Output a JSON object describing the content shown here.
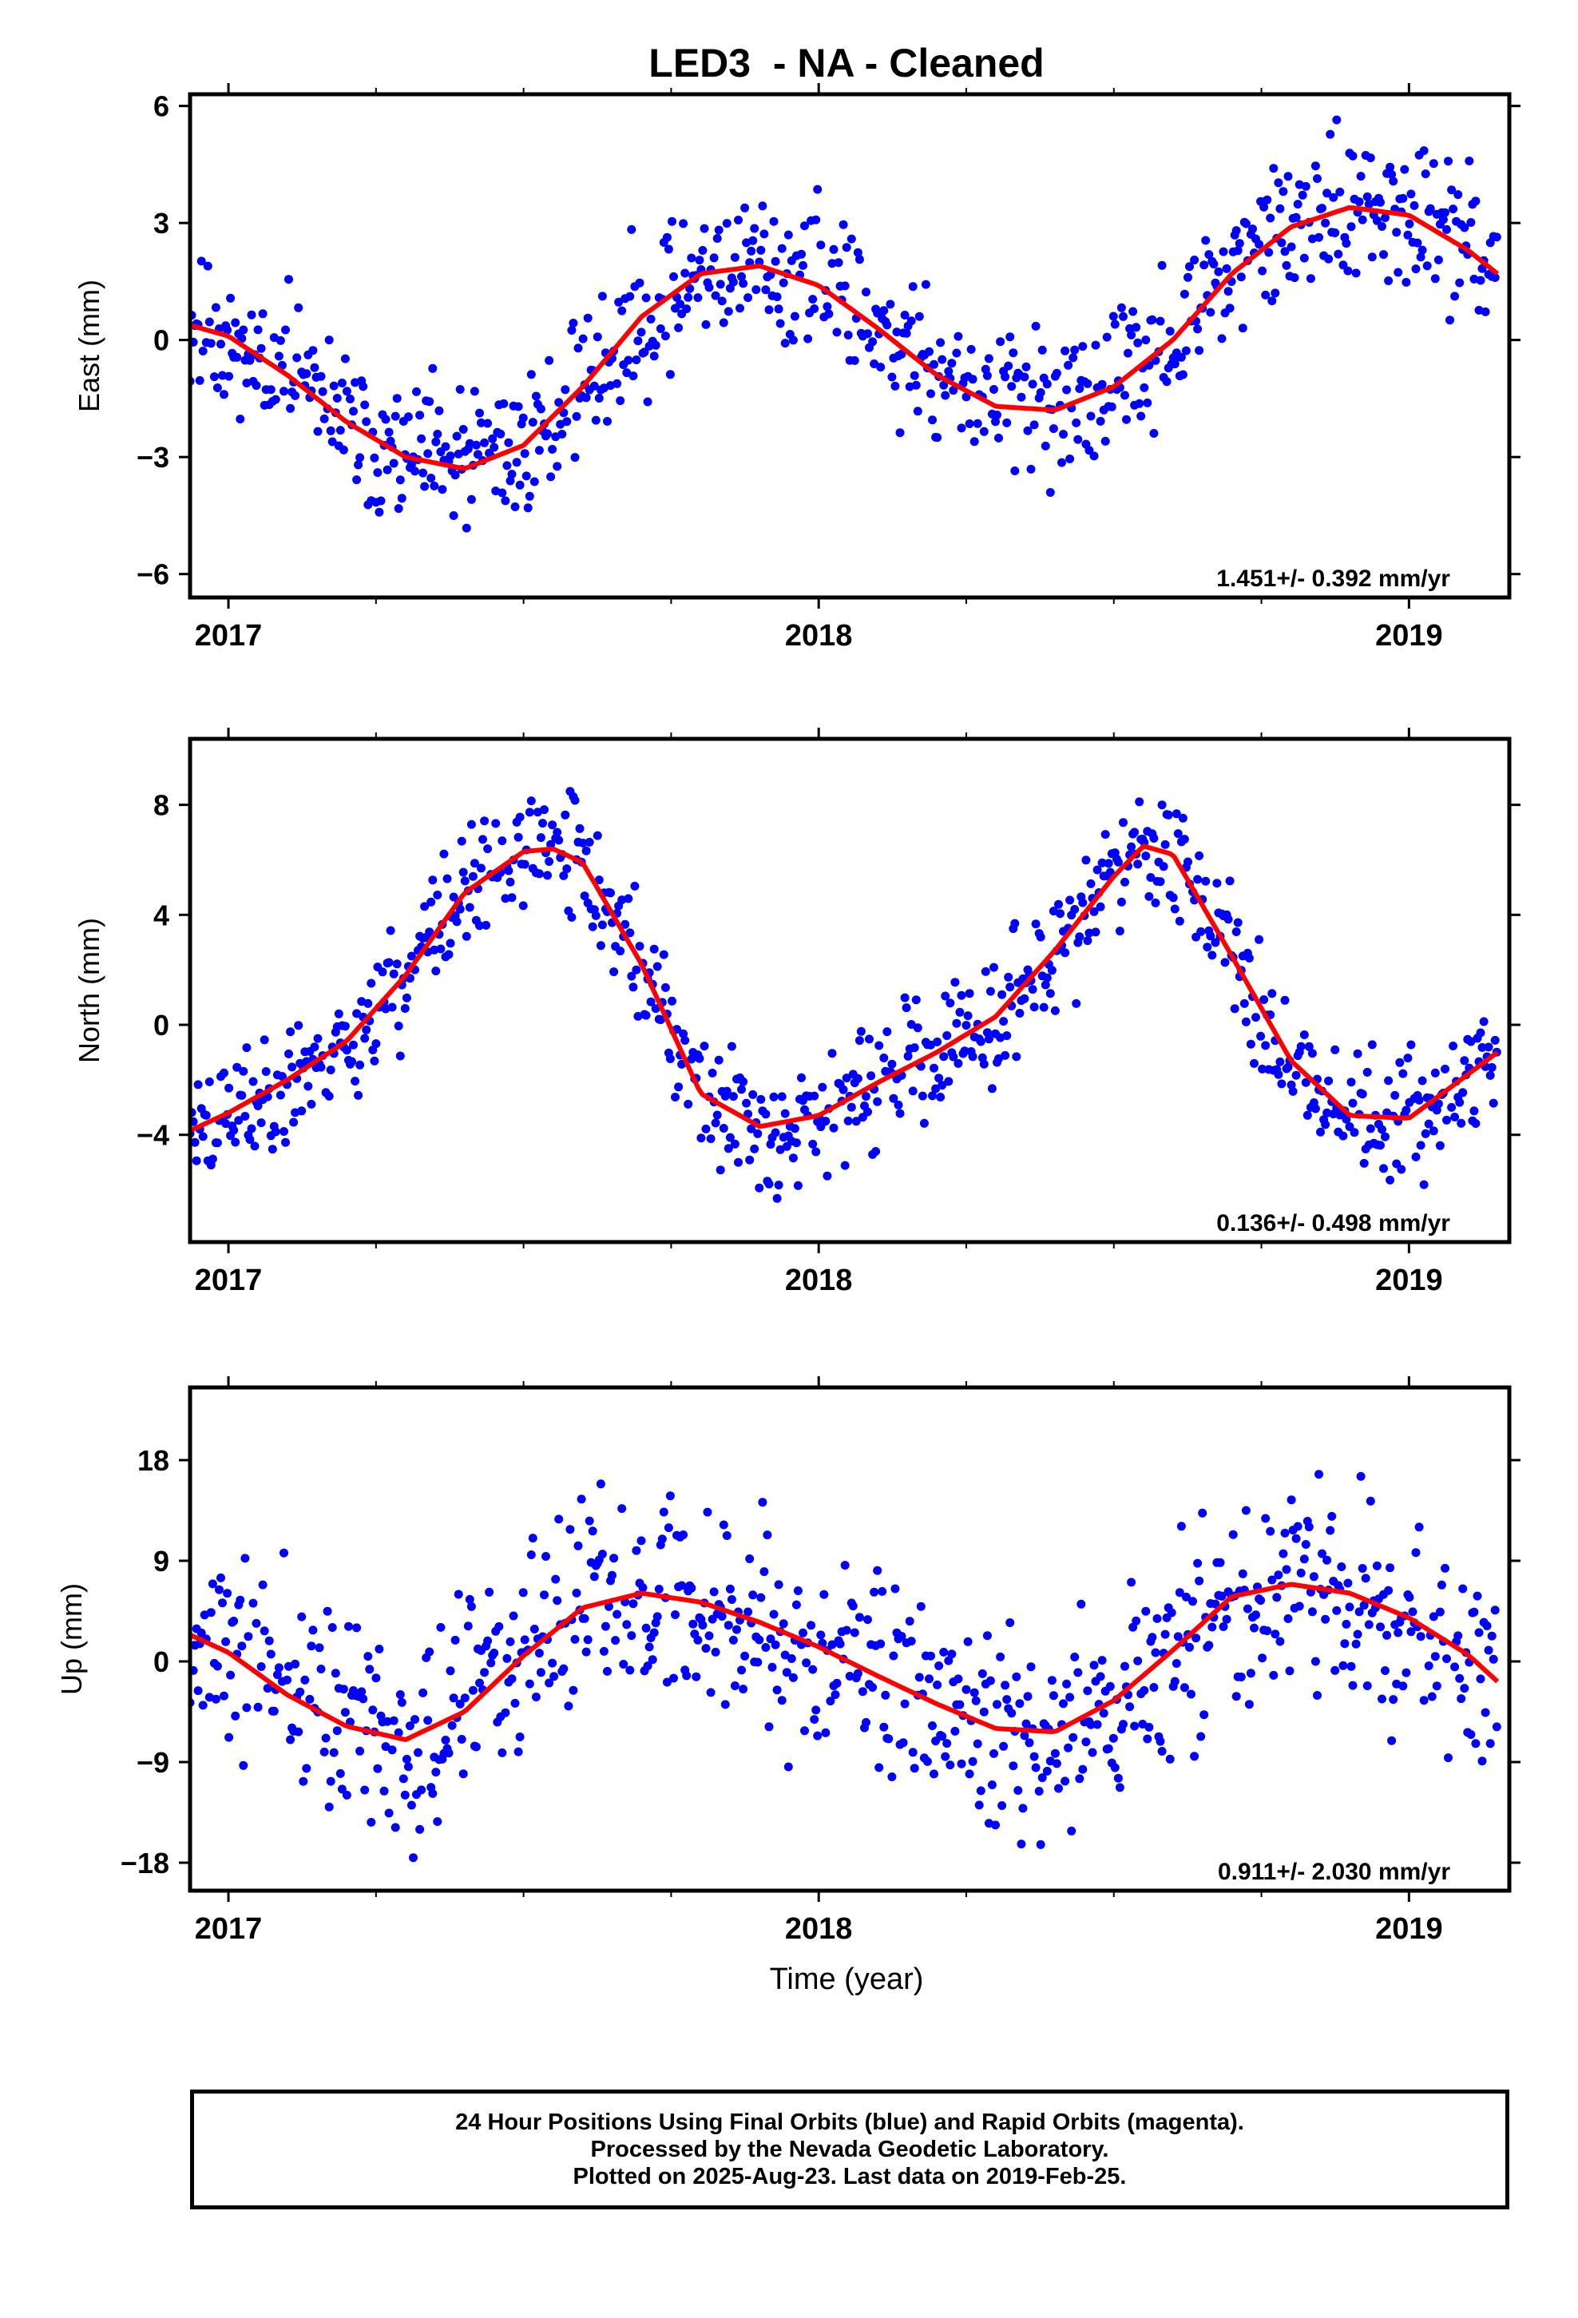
{
  "title": "LED3  - NA - Cleaned",
  "colors": {
    "data": "#0000ff",
    "fit": "#ff0000",
    "frame": "#000000"
  },
  "xlabel": "Time (year)",
  "footer": {
    "line1": "24 Hour Positions Using Final Orbits (blue) and Rapid Orbits (magenta).",
    "line2": "Processed by the Nevada Geodetic Laboratory.",
    "line3": "Plotted on 2025-Aug-23. Last data on 2019-Feb-25."
  },
  "chart_data": [
    {
      "type": "scatter",
      "ylabel": "East (mm)",
      "rate_label": "1.451+/- 0.392 mm/yr",
      "xlim": [
        2016.935,
        2019.17
      ],
      "ylim": [
        -6.6,
        6.3
      ],
      "xticks": [
        2017,
        2018,
        2019
      ],
      "yticks": [
        -6,
        -3,
        0,
        3,
        6
      ],
      "yticklabels": [
        "−6",
        "−3",
        "0",
        "3",
        "6"
      ],
      "fit": {
        "x": [
          2016.93,
          2017.0,
          2017.1,
          2017.2,
          2017.3,
          2017.4,
          2017.5,
          2017.6,
          2017.7,
          2017.8,
          2017.9,
          2018.0,
          2018.1,
          2018.2,
          2018.3,
          2018.4,
          2018.5,
          2018.6,
          2018.7,
          2018.8,
          2018.9,
          2019.0,
          2019.1,
          2019.15
        ],
        "y": [
          0.4,
          0.1,
          -0.9,
          -2.1,
          -3.0,
          -3.3,
          -2.7,
          -1.2,
          0.6,
          1.7,
          1.9,
          1.4,
          0.3,
          -0.9,
          -1.7,
          -1.8,
          -1.2,
          0.0,
          1.7,
          2.9,
          3.4,
          3.2,
          2.3,
          1.7
        ]
      },
      "series_seed": 11,
      "noise": 0.9
    },
    {
      "type": "scatter",
      "ylabel": "North (mm)",
      "rate_label": "0.136+/- 0.498 mm/yr",
      "xlim": [
        2016.935,
        2019.17
      ],
      "ylim": [
        -7.9,
        10.4
      ],
      "xticks": [
        2017,
        2018,
        2019
      ],
      "yticks": [
        -4,
        0,
        4,
        8
      ],
      "yticklabels": [
        "−4",
        "0",
        "4",
        "8"
      ],
      "fit": {
        "x": [
          2016.93,
          2017.0,
          2017.1,
          2017.2,
          2017.3,
          2017.4,
          2017.5,
          2017.55,
          2017.6,
          2017.7,
          2017.8,
          2017.9,
          2018.0,
          2018.1,
          2018.2,
          2018.3,
          2018.4,
          2018.5,
          2018.55,
          2018.6,
          2018.7,
          2018.8,
          2018.9,
          2019.0,
          2019.1,
          2019.15
        ],
        "y": [
          -3.9,
          -3.2,
          -2.0,
          -0.6,
          1.8,
          4.8,
          6.3,
          6.4,
          5.9,
          2.2,
          -2.5,
          -3.7,
          -3.3,
          -2.1,
          -1.0,
          0.3,
          2.7,
          5.4,
          6.5,
          6.2,
          2.5,
          -1.3,
          -3.3,
          -3.4,
          -1.8,
          -1.0
        ]
      },
      "series_seed": 23,
      "noise": 1.1
    },
    {
      "type": "scatter",
      "ylabel": "Up (mm)",
      "rate_label": "0.911+/- 2.030 mm/yr",
      "xlim": [
        2016.935,
        2019.17
      ],
      "ylim": [
        -20.5,
        24.5
      ],
      "xticks": [
        2017,
        2018,
        2019
      ],
      "yticks": [
        -18,
        -9,
        0,
        9,
        18
      ],
      "yticklabels": [
        "−18",
        "−9",
        "0",
        "9",
        "18"
      ],
      "fit": {
        "x": [
          2016.93,
          2017.0,
          2017.1,
          2017.2,
          2017.3,
          2017.4,
          2017.5,
          2017.6,
          2017.7,
          2017.8,
          2017.9,
          2018.0,
          2018.1,
          2018.2,
          2018.3,
          2018.4,
          2018.5,
          2018.6,
          2018.7,
          2018.8,
          2018.9,
          2019.0,
          2019.1,
          2019.15
        ],
        "y": [
          2.5,
          0.8,
          -3.0,
          -5.8,
          -7.0,
          -4.5,
          0.5,
          4.8,
          6.1,
          5.3,
          3.5,
          1.3,
          -1.3,
          -3.8,
          -6.0,
          -6.3,
          -3.5,
          1.0,
          5.8,
          6.9,
          6.1,
          3.9,
          0.6,
          -1.8
        ]
      },
      "series_seed": 37,
      "noise": 4.5
    }
  ]
}
